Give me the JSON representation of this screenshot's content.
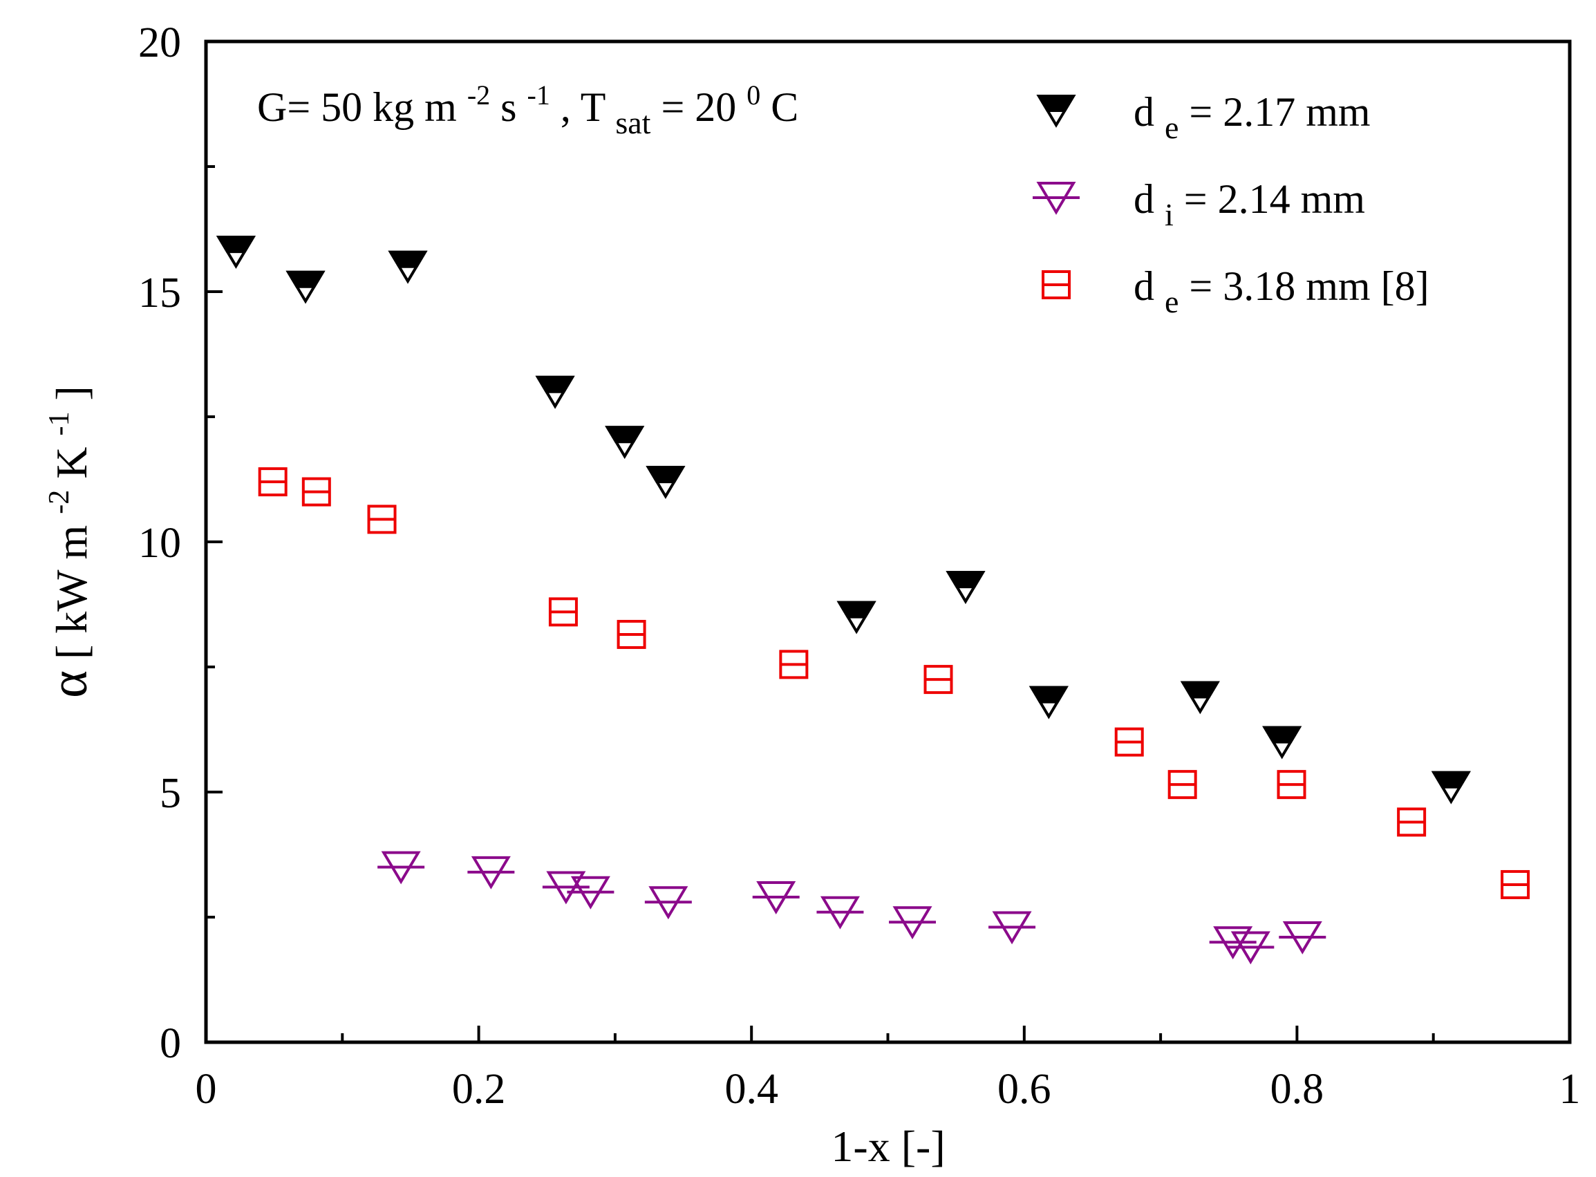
{
  "chart_data": {
    "type": "scatter",
    "title": "",
    "xlabel": "1-x [-]",
    "ylabel": "α [ kW m⁻²K⁻¹]",
    "ylabel_parts": {
      "symbol": "α",
      "unit_a": "[ kW m",
      "exp_a": "-2",
      "unit_b": "K",
      "exp_b": "-1",
      "close": "]"
    },
    "xlim": [
      0,
      1
    ],
    "ylim": [
      0,
      20
    ],
    "xticks": [
      0,
      0.2,
      0.4,
      0.6,
      0.8,
      1
    ],
    "xtick_labels": [
      "0",
      "0.2",
      "0.4",
      "0.6",
      "0.8",
      "1"
    ],
    "yticks": [
      0,
      5,
      10,
      15,
      20
    ],
    "ytick_labels": [
      "0",
      "5",
      "10",
      "15",
      "20"
    ],
    "grid": false,
    "legend_position": "top-right",
    "annotation": {
      "text": "G= 50 kg m⁻²s⁻¹, T_sat= 20 ⁰C",
      "p1": "G= 50 kg m",
      "s1": "-2",
      "p2": "s",
      "s2": "-1",
      "p3": ", T",
      "sub": "sat",
      "p4": "= 20 ",
      "s3": "0",
      "p5": "C"
    },
    "series": [
      {
        "name": "d_e= 2.17 mm",
        "label_main": "d",
        "label_sub": "e",
        "label_rest": "= 2.17 mm",
        "marker": "half-filled-down-triangle",
        "color": "#000000",
        "points": [
          [
            0.022,
            15.8
          ],
          [
            0.073,
            15.1
          ],
          [
            0.148,
            15.5
          ],
          [
            0.256,
            13.0
          ],
          [
            0.307,
            12.0
          ],
          [
            0.337,
            11.2
          ],
          [
            0.477,
            8.5
          ],
          [
            0.557,
            9.1
          ],
          [
            0.618,
            6.8
          ],
          [
            0.729,
            6.9
          ],
          [
            0.789,
            6.0
          ],
          [
            0.913,
            5.1
          ]
        ]
      },
      {
        "name": "d_i= 2.14 mm",
        "label_main": "d",
        "label_sub": "i",
        "label_rest": "=  2.14 mm",
        "marker": "open-down-triangle-bar",
        "color": "#8b0a8b",
        "points": [
          [
            0.143,
            3.5
          ],
          [
            0.209,
            3.4
          ],
          [
            0.264,
            3.1
          ],
          [
            0.282,
            3.0
          ],
          [
            0.339,
            2.8
          ],
          [
            0.418,
            2.9
          ],
          [
            0.465,
            2.6
          ],
          [
            0.518,
            2.4
          ],
          [
            0.591,
            2.3
          ],
          [
            0.753,
            2.0
          ],
          [
            0.766,
            1.9
          ],
          [
            0.804,
            2.1
          ]
        ]
      },
      {
        "name": "d_e= 3.18 mm [8]",
        "label_main": "d",
        "label_sub": "e",
        "label_rest": "= 3.18 mm [8]",
        "marker": "open-square-bar",
        "color": "#ee0000",
        "points": [
          [
            0.049,
            11.2
          ],
          [
            0.081,
            11.0
          ],
          [
            0.129,
            10.45
          ],
          [
            0.262,
            8.6
          ],
          [
            0.312,
            8.15
          ],
          [
            0.431,
            7.55
          ],
          [
            0.537,
            7.25
          ],
          [
            0.677,
            6.0
          ],
          [
            0.716,
            5.15
          ],
          [
            0.796,
            5.15
          ],
          [
            0.884,
            4.4
          ],
          [
            0.96,
            3.15
          ]
        ]
      }
    ]
  }
}
